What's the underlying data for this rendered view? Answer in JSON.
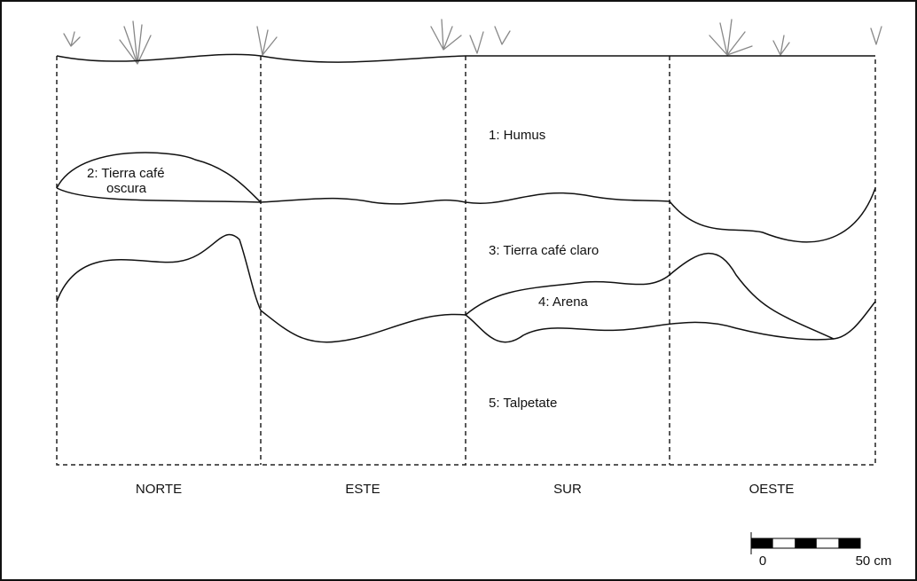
{
  "layers": [
    {
      "lines": [
        "1:  Humus"
      ]
    },
    {
      "lines": [
        "2: Tierra café",
        "oscura"
      ]
    },
    {
      "lines": [
        "3:  Tierra café claro"
      ]
    },
    {
      "lines": [
        "4:  Arena"
      ]
    },
    {
      "lines": [
        "5:  Talpetate"
      ]
    }
  ],
  "walls": [
    "NORTE",
    "ESTE",
    "SUR",
    "OESTE"
  ],
  "scale": {
    "start": "0",
    "end": "50 cm"
  }
}
